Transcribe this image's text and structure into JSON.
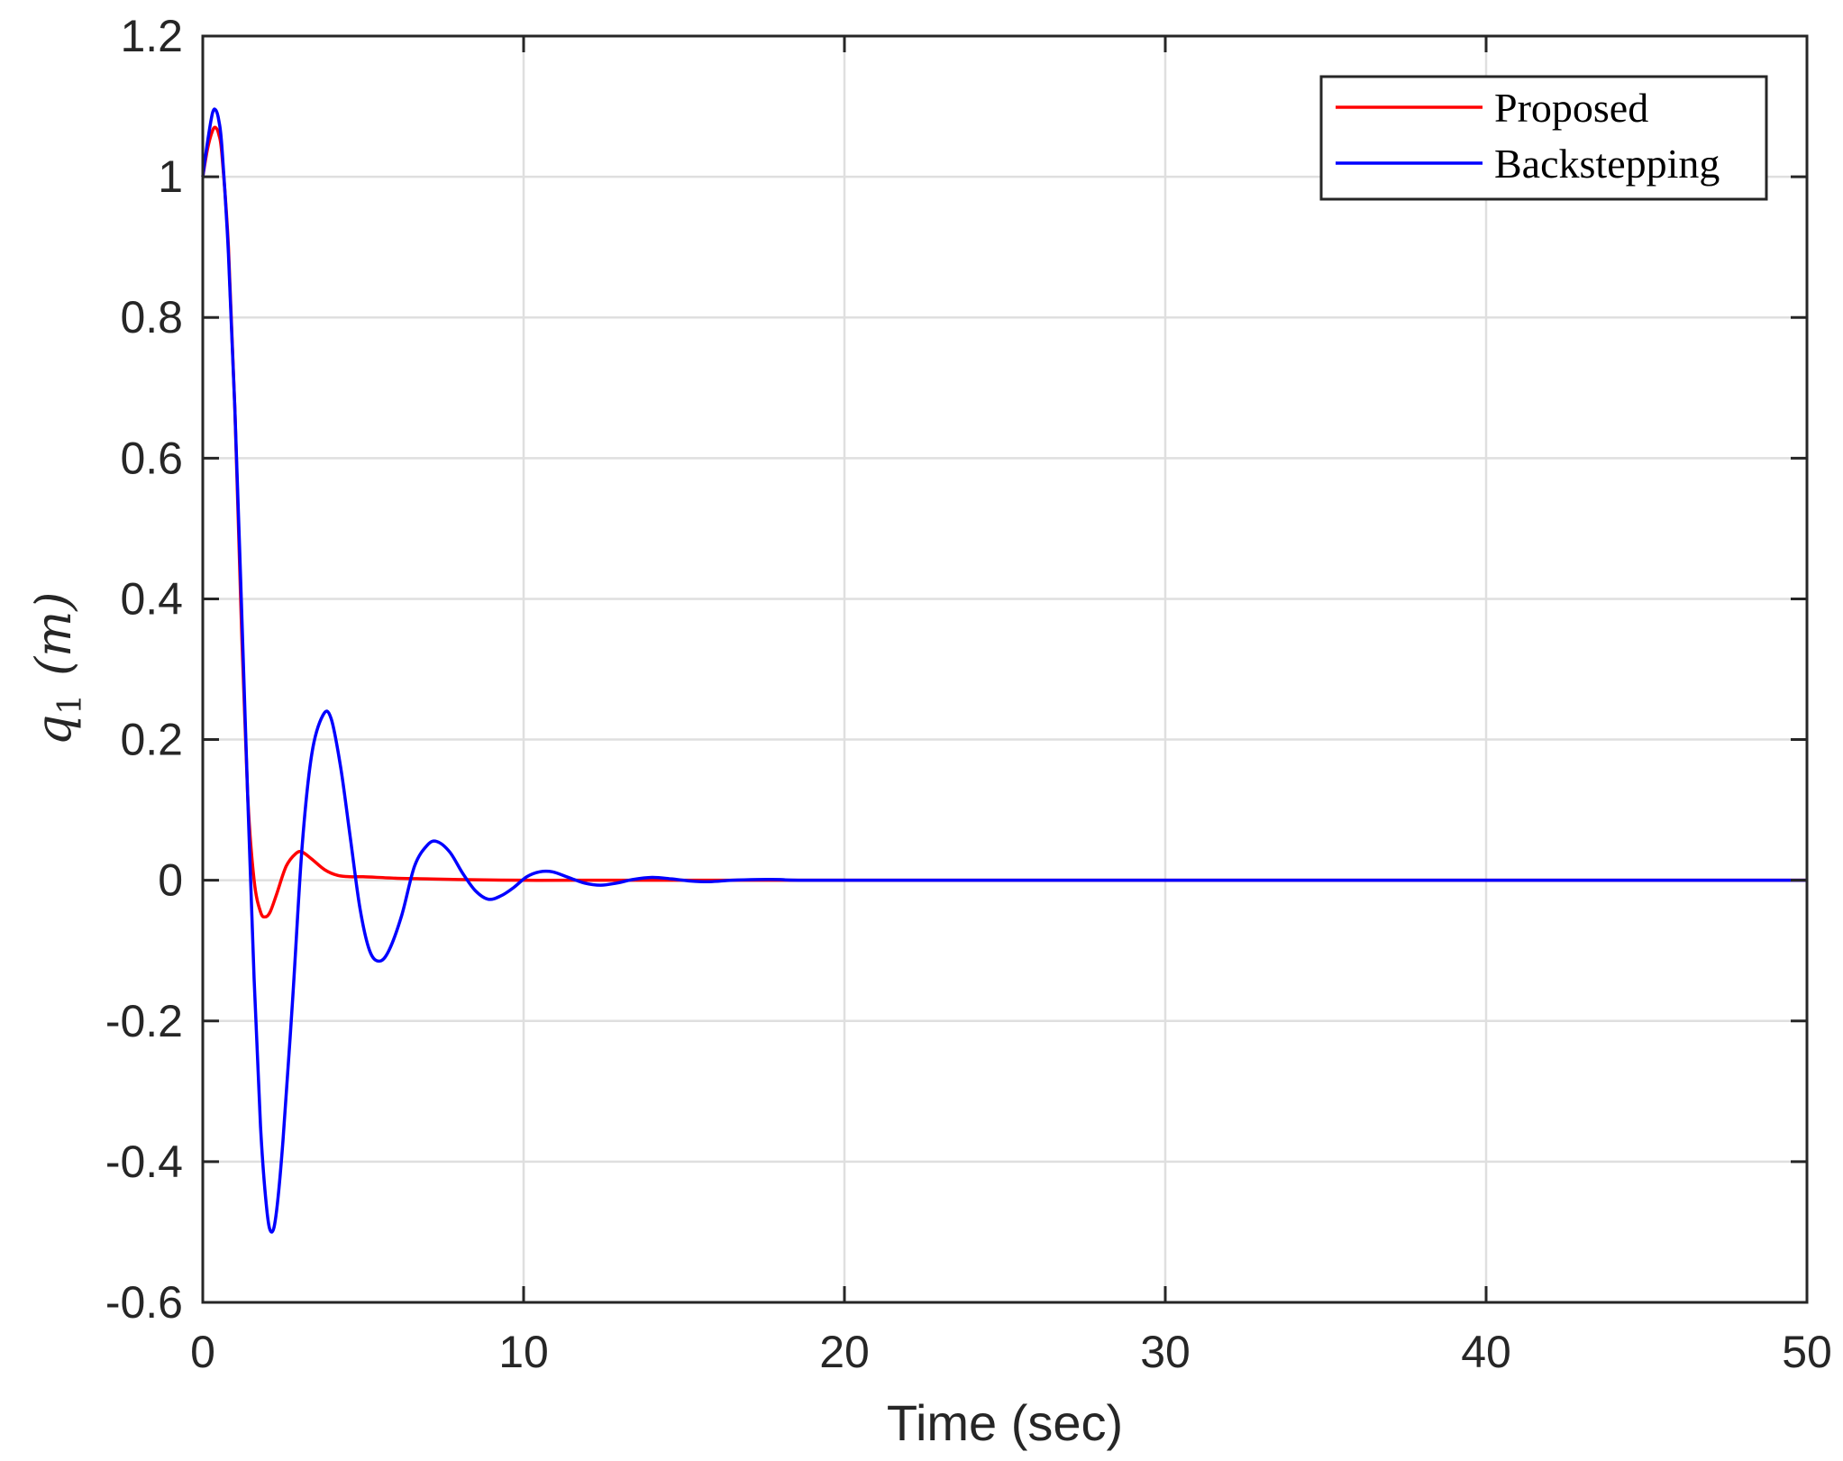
{
  "chart_data": {
    "type": "line",
    "title": "",
    "xlabel": "Time (sec)",
    "ylabel": {
      "symbol": "q",
      "subscript": "1",
      "unit": "(m)"
    },
    "xlim": [
      0,
      50
    ],
    "ylim": [
      -0.6,
      1.2
    ],
    "xticks": [
      0,
      10,
      20,
      30,
      40,
      50
    ],
    "xtick_labels": [
      "0",
      "10",
      "20",
      "30",
      "40",
      "50"
    ],
    "yticks": [
      -0.6,
      -0.4,
      -0.2,
      0,
      0.2,
      0.4,
      0.6,
      0.8,
      1,
      1.2
    ],
    "ytick_labels": [
      "-0.6",
      "-0.4",
      "-0.2",
      "0",
      "0.2",
      "0.4",
      "0.6",
      "0.8",
      "1",
      "1.2"
    ],
    "grid": true,
    "legend_position": "top-right",
    "series": [
      {
        "name": "Proposed",
        "color": "#ff0000",
        "points": [
          [
            0,
            1.0
          ],
          [
            0.15,
            1.04
          ],
          [
            0.3,
            1.065
          ],
          [
            0.4,
            1.07
          ],
          [
            0.5,
            1.06
          ],
          [
            0.6,
            1.03
          ],
          [
            0.8,
            0.9
          ],
          [
            1.0,
            0.67
          ],
          [
            1.2,
            0.37
          ],
          [
            1.4,
            0.12
          ],
          [
            1.6,
            0.0
          ],
          [
            1.8,
            -0.045
          ],
          [
            1.95,
            -0.052
          ],
          [
            2.1,
            -0.045
          ],
          [
            2.3,
            -0.02
          ],
          [
            2.6,
            0.02
          ],
          [
            2.9,
            0.038
          ],
          [
            3.1,
            0.04
          ],
          [
            3.4,
            0.03
          ],
          [
            3.8,
            0.015
          ],
          [
            4.2,
            0.007
          ],
          [
            4.6,
            0.005
          ],
          [
            5.0,
            0.005
          ],
          [
            6.0,
            0.003
          ],
          [
            7.0,
            0.002
          ],
          [
            8.0,
            0.001
          ],
          [
            10.0,
            0.0
          ],
          [
            12.0,
            0.0
          ],
          [
            20.0,
            0.0
          ],
          [
            30.0,
            0.0
          ],
          [
            40.0,
            0.0
          ],
          [
            50.0,
            0.0
          ]
        ]
      },
      {
        "name": "Backstepping",
        "color": "#0000ff",
        "points": [
          [
            0,
            1.0
          ],
          [
            0.15,
            1.05
          ],
          [
            0.3,
            1.09
          ],
          [
            0.4,
            1.095
          ],
          [
            0.5,
            1.08
          ],
          [
            0.6,
            1.04
          ],
          [
            0.8,
            0.89
          ],
          [
            1.0,
            0.67
          ],
          [
            1.2,
            0.4
          ],
          [
            1.4,
            0.12
          ],
          [
            1.6,
            -0.14
          ],
          [
            1.8,
            -0.35
          ],
          [
            2.0,
            -0.47
          ],
          [
            2.15,
            -0.5
          ],
          [
            2.3,
            -0.47
          ],
          [
            2.5,
            -0.37
          ],
          [
            2.8,
            -0.17
          ],
          [
            3.1,
            0.05
          ],
          [
            3.4,
            0.18
          ],
          [
            3.75,
            0.235
          ],
          [
            4.0,
            0.23
          ],
          [
            4.3,
            0.16
          ],
          [
            4.6,
            0.06
          ],
          [
            4.9,
            -0.04
          ],
          [
            5.2,
            -0.1
          ],
          [
            5.5,
            -0.115
          ],
          [
            5.8,
            -0.1
          ],
          [
            6.2,
            -0.05
          ],
          [
            6.6,
            0.02
          ],
          [
            7.0,
            0.05
          ],
          [
            7.3,
            0.055
          ],
          [
            7.7,
            0.04
          ],
          [
            8.1,
            0.01
          ],
          [
            8.5,
            -0.015
          ],
          [
            8.9,
            -0.027
          ],
          [
            9.3,
            -0.022
          ],
          [
            9.7,
            -0.01
          ],
          [
            10.1,
            0.005
          ],
          [
            10.5,
            0.012
          ],
          [
            10.9,
            0.012
          ],
          [
            11.4,
            0.004
          ],
          [
            11.9,
            -0.004
          ],
          [
            12.4,
            -0.007
          ],
          [
            12.9,
            -0.004
          ],
          [
            13.4,
            0.001
          ],
          [
            14.0,
            0.004
          ],
          [
            14.6,
            0.002
          ],
          [
            15.2,
            -0.001
          ],
          [
            15.8,
            -0.002
          ],
          [
            16.5,
            0.0
          ],
          [
            17.3,
            0.001
          ],
          [
            18.0,
            0.001
          ],
          [
            19.0,
            0.0
          ],
          [
            25.0,
            0.0
          ],
          [
            35.0,
            0.0
          ],
          [
            50.0,
            0.0
          ]
        ]
      }
    ]
  }
}
